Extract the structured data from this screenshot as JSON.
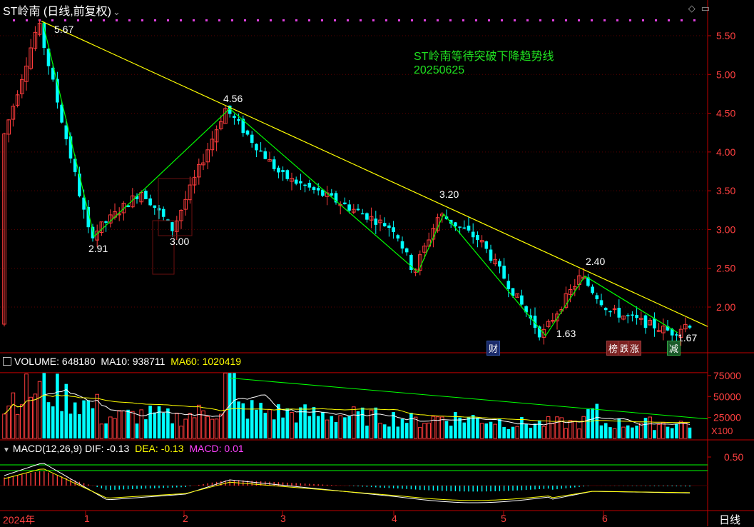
{
  "header": {
    "title": "ST岭南 (日线,前复权)",
    "dropdown_icon": "chevron-down-icon",
    "icons": [
      "diamond-icon",
      "window-icon"
    ]
  },
  "annotation": {
    "line1": "ST岭南等待突破下降趋势线",
    "line2": "20250625"
  },
  "price_labels": {
    "p1": "5.67",
    "p2": "2.91",
    "p3": "3.00",
    "p4": "4.56",
    "p5": "3.20",
    "p6": "1.63",
    "p7": "2.40",
    "p8": "1.67"
  },
  "event_tags": {
    "t1": "财",
    "t2": "榜",
    "t3": "跌",
    "t4": "涨",
    "t5": "减"
  },
  "price_axis": [
    "5.50",
    "5.00",
    "4.50",
    "4.00",
    "3.50",
    "3.00",
    "2.50",
    "2.00"
  ],
  "volume": {
    "label": "VOLUME:",
    "value": "648180",
    "ma10_label": "MA10:",
    "ma10_value": "938711",
    "ma60_label": "MA60:",
    "ma60_value": "1020419",
    "axis": [
      "75000",
      "50000",
      "25000"
    ],
    "unit": "X100"
  },
  "macd": {
    "label": "MACD(12,26,9)",
    "dif_label": "DIF:",
    "dif_value": "-0.13",
    "dea_label": "DEA:",
    "dea_value": "-0.13",
    "macd_label": "MACD:",
    "macd_value": "0.01",
    "axis": [
      "0.50"
    ]
  },
  "x_axis": {
    "labels": [
      "2024年",
      "1",
      "2",
      "3",
      "4",
      "5",
      "6"
    ],
    "period": "日线"
  },
  "colors": {
    "up": "#ff3c3c",
    "down": "#00ffff",
    "trend": "#ffff00",
    "zigzag": "#00ff00",
    "axis": "#c00000"
  }
}
